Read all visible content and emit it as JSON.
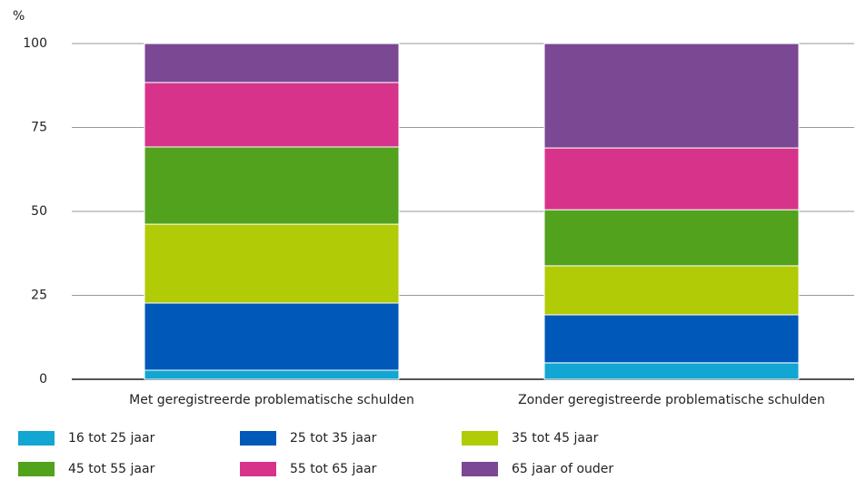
{
  "chart_data": {
    "type": "stacked_bar",
    "y_axis_label": "%",
    "categories": [
      "Met geregistreerde problematische schulden",
      "Zonder geregistreerde problematische schulden"
    ],
    "series": [
      {
        "name": "16 tot 25 jaar",
        "color": "#12a6d3",
        "values": [
          2.7,
          4.9
        ]
      },
      {
        "name": "25 tot 35 jaar",
        "color": "#0058b9",
        "values": [
          20.0,
          14.3
        ]
      },
      {
        "name": "35 tot 45 jaar",
        "color": "#b1cb06",
        "values": [
          23.5,
          14.6
        ]
      },
      {
        "name": "45 tot 55 jaar",
        "color": "#52a21d",
        "values": [
          23.0,
          16.7
        ]
      },
      {
        "name": "55 tot 65 jaar",
        "color": "#d8338a",
        "values": [
          19.2,
          18.4
        ]
      },
      {
        "name": "65 jaar of ouder",
        "color": "#7b4894",
        "values": [
          11.6,
          31.1
        ]
      }
    ],
    "ylim": [
      0,
      100
    ],
    "yticks": [
      0,
      25,
      50,
      75,
      100
    ],
    "grid": true
  }
}
